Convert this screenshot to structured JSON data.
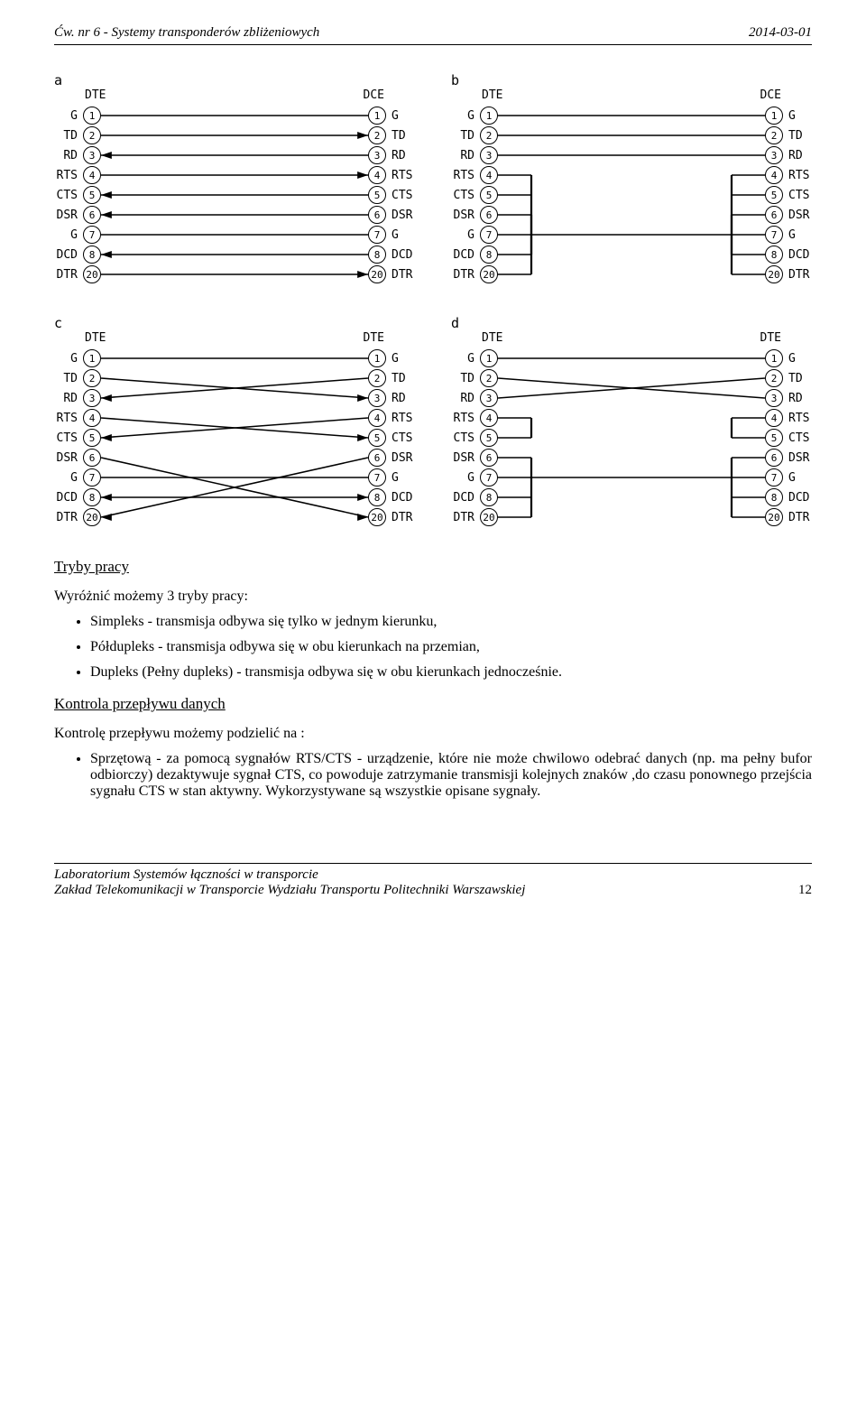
{
  "header": {
    "left": "Ćw. nr 6 - Systemy transponderów zbliżeniowych",
    "right": "2014-03-01"
  },
  "pins": [
    {
      "lbl": "G",
      "n": "1"
    },
    {
      "lbl": "TD",
      "n": "2"
    },
    {
      "lbl": "RD",
      "n": "3"
    },
    {
      "lbl": "RTS",
      "n": "4"
    },
    {
      "lbl": "CTS",
      "n": "5"
    },
    {
      "lbl": "DSR",
      "n": "6"
    },
    {
      "lbl": "G",
      "n": "7"
    },
    {
      "lbl": "DCD",
      "n": "8"
    },
    {
      "lbl": "DTR",
      "n": "20"
    }
  ],
  "panels": {
    "a": {
      "left": "DTE",
      "right": "DCE"
    },
    "b": {
      "left": "DTE",
      "right": "DCE"
    },
    "c": {
      "left": "DTE",
      "right": "DTE"
    },
    "d": {
      "left": "DTE",
      "right": "DTE"
    }
  },
  "section1_title": "Tryby pracy",
  "section1_intro": "Wyróżnić możemy 3 tryby pracy:",
  "section1_items": [
    "Simpleks - transmisja odbywa się tylko w jednym kierunku,",
    "Półdupleks - transmisja odbywa się w obu kierunkach na przemian,",
    "Dupleks (Pełny dupleks) - transmisja odbywa się w obu kierunkach jednocześnie."
  ],
  "section2_title": "Kontrola przepływu danych",
  "section2_intro": "Kontrolę przepływu możemy podzielić na :",
  "section2_item": "Sprzętową - za pomocą sygnałów RTS/CTS - urządzenie, które nie może chwilowo odebrać danych (np. ma pełny bufor odbiorczy) dezaktywuje sygnał CTS, co powoduje zatrzymanie transmisji kolejnych znaków ,do czasu ponownego przejścia sygnału CTS w stan aktywny. Wykorzystywane są wszystkie opisane sygnały.",
  "footer": {
    "line1": "Laboratorium Systemów łączności w transporcie",
    "line2": "Zakład Telekomunikacji w Transporcie Wydziału Transportu Politechniki Warszawskiej",
    "page": "12"
  }
}
